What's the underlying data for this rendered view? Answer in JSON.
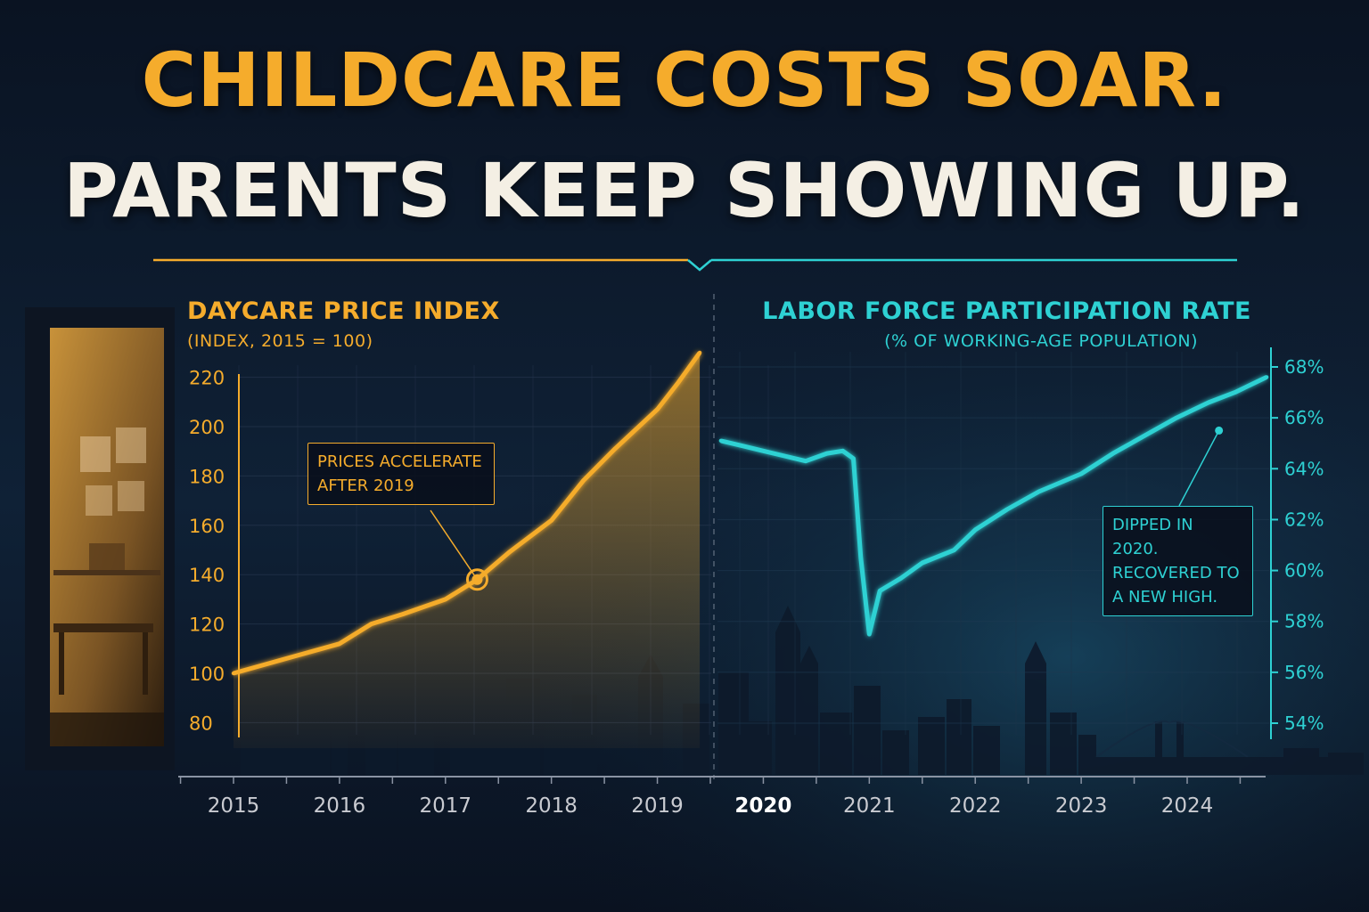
{
  "headline": {
    "line1": "CHILDCARE COSTS SOAR.",
    "line2": "PARENTS KEEP SHOWING UP."
  },
  "colors": {
    "background": "#0b1526",
    "daycare": "#f5ac2c",
    "labor": "#2ed1d3",
    "headline_light": "#f4efe4",
    "axis_text": "#c9cbd1"
  },
  "x_axis": {
    "ticks": [
      "2015",
      "2016",
      "2017",
      "2018",
      "2019",
      "2020",
      "2021",
      "2022",
      "2023",
      "2024"
    ],
    "highlight": "2020"
  },
  "chart_data": [
    {
      "type": "area",
      "title": "DAYCARE PRICE INDEX",
      "subtitle": "(INDEX, 2015 = 100)",
      "x_range": [
        2015.0,
        2019.4
      ],
      "ylim": [
        75,
        225
      ],
      "yticks": [
        80,
        100,
        120,
        140,
        160,
        180,
        200,
        220
      ],
      "grid": true,
      "x": [
        2015.0,
        2015.5,
        2016.0,
        2016.3,
        2016.6,
        2017.0,
        2017.3,
        2017.6,
        2018.0,
        2018.3,
        2018.6,
        2019.0,
        2019.2,
        2019.4
      ],
      "values": [
        100,
        106,
        112,
        120,
        124,
        130,
        138,
        149,
        162,
        178,
        191,
        207,
        218,
        230
      ],
      "annotation": {
        "text": "PRICES ACCELERATE\nAFTER 2019",
        "point": {
          "x": 2017.3,
          "y": 138
        }
      }
    },
    {
      "type": "line",
      "title": "LABOR FORCE PARTICIPATION RATE",
      "subtitle": "(% OF WORKING-AGE POPULATION)",
      "x_range": [
        2019.6,
        2024.75
      ],
      "ylim": [
        53.5,
        68.5
      ],
      "yticks": [
        54,
        56,
        58,
        60,
        62,
        64,
        66,
        68
      ],
      "ytick_suffix": "%",
      "grid": true,
      "x": [
        2019.6,
        2019.8,
        2020.0,
        2020.2,
        2020.4,
        2020.6,
        2020.75,
        2020.85,
        2020.92,
        2021.0,
        2021.1,
        2021.3,
        2021.5,
        2021.8,
        2022.0,
        2022.3,
        2022.6,
        2023.0,
        2023.3,
        2023.6,
        2023.9,
        2024.2,
        2024.45,
        2024.75
      ],
      "values": [
        65.1,
        64.9,
        64.7,
        64.5,
        64.3,
        64.6,
        64.7,
        64.4,
        60.5,
        57.5,
        59.2,
        59.7,
        60.3,
        60.8,
        61.6,
        62.4,
        63.1,
        63.8,
        64.6,
        65.3,
        66.0,
        66.6,
        67.0,
        67.6
      ],
      "annotation": {
        "text": "DIPPED IN 2020.\nRECOVERED TO\nA NEW HIGH.",
        "point": {
          "x": 2024.3,
          "y": 65.5
        }
      }
    }
  ]
}
